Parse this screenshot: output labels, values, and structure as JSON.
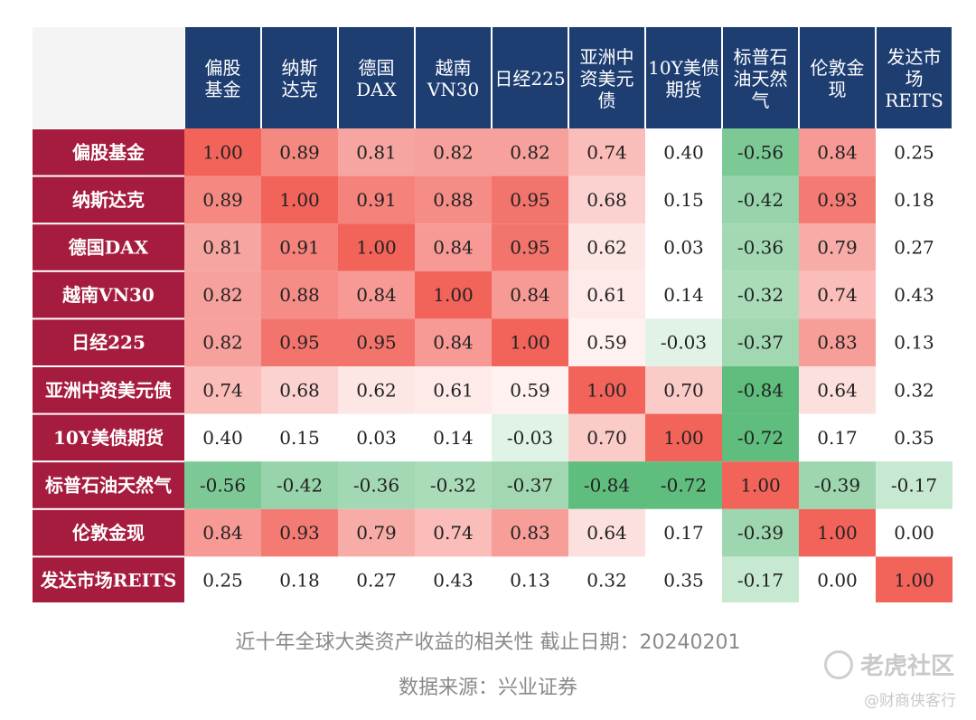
{
  "chart_data": {
    "type": "heatmap",
    "columns": [
      "偏股基金",
      "纳斯达克",
      "德国DAX",
      "越南VN30",
      "日经225",
      "亚洲中资美元债",
      "10Y美债期货",
      "标普石油天然气",
      "伦敦金现",
      "发达市场REITS"
    ],
    "column_header_lines": [
      [
        "偏股",
        "基金"
      ],
      [
        "纳斯",
        "达克"
      ],
      [
        "德国",
        "DAX"
      ],
      [
        "越南",
        "VN30"
      ],
      [
        "日经225"
      ],
      [
        "亚洲中",
        "资美元",
        "债"
      ],
      [
        "10Y美债",
        "期货"
      ],
      [
        "标普石",
        "油天然",
        "气"
      ],
      [
        "伦敦金",
        "现"
      ],
      [
        "发达市",
        "场",
        "REITS"
      ]
    ],
    "rows": [
      "偏股基金",
      "纳斯达克",
      "德国DAX",
      "越南VN30",
      "日经225",
      "亚洲中资美元债",
      "10Y美债期货",
      "标普石油天然气",
      "伦敦金现",
      "发达市场REITS"
    ],
    "values": [
      [
        1.0,
        0.89,
        0.81,
        0.82,
        0.82,
        0.74,
        0.4,
        -0.56,
        0.84,
        0.25
      ],
      [
        0.89,
        1.0,
        0.91,
        0.88,
        0.95,
        0.68,
        0.15,
        -0.42,
        0.93,
        0.18
      ],
      [
        0.81,
        0.91,
        1.0,
        0.84,
        0.95,
        0.62,
        0.03,
        -0.36,
        0.79,
        0.27
      ],
      [
        0.82,
        0.88,
        0.84,
        1.0,
        0.84,
        0.61,
        0.14,
        -0.32,
        0.74,
        0.43
      ],
      [
        0.82,
        0.95,
        0.95,
        0.84,
        1.0,
        0.59,
        -0.03,
        -0.37,
        0.83,
        0.13
      ],
      [
        0.74,
        0.68,
        0.62,
        0.61,
        0.59,
        1.0,
        0.7,
        -0.84,
        0.64,
        0.32
      ],
      [
        0.4,
        0.15,
        0.03,
        0.14,
        -0.03,
        0.7,
        1.0,
        -0.72,
        0.17,
        0.35
      ],
      [
        -0.56,
        -0.42,
        -0.36,
        -0.32,
        -0.37,
        -0.84,
        -0.72,
        1.0,
        -0.39,
        -0.17
      ],
      [
        0.84,
        0.93,
        0.79,
        0.74,
        0.83,
        0.64,
        0.17,
        -0.39,
        1.0,
        0.0
      ],
      [
        0.25,
        0.18,
        0.27,
        0.43,
        0.13,
        0.32,
        0.35,
        -0.17,
        0.0,
        1.0
      ]
    ],
    "colors": {
      "header_bg": "#1e3e72",
      "row_header_bg": "#a51c3e",
      "positive_high": "#f2635a",
      "neutral": "#ffffff",
      "negative_high": "#5fbd7d",
      "header_text": "#ffffff",
      "cell_text": "#222222"
    }
  },
  "caption": {
    "line1": "近十年全球大类资产收益的相关性 截止日期：20240201",
    "line2": "数据来源：兴业证券"
  },
  "watermark": {
    "brand": "老虎社区",
    "handle": "@财商侠客行"
  }
}
